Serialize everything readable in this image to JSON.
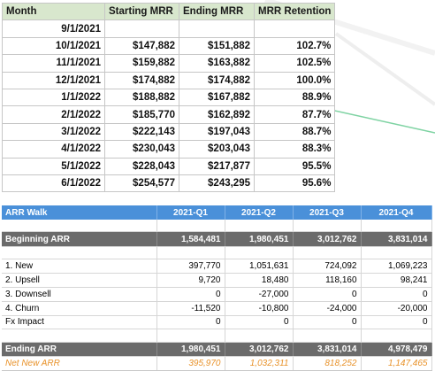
{
  "mrr_table": {
    "headers": [
      "Month",
      "Starting MRR",
      "Ending MRR",
      "MRR Retention"
    ],
    "rows": [
      [
        "9/1/2021",
        "",
        "",
        ""
      ],
      [
        "10/1/2021",
        "$147,882",
        "$151,882",
        "102.7%"
      ],
      [
        "11/1/2021",
        "$159,882",
        "$163,882",
        "102.5%"
      ],
      [
        "12/1/2021",
        "$174,882",
        "$174,882",
        "100.0%"
      ],
      [
        "1/1/2022",
        "$188,882",
        "$167,882",
        "88.9%"
      ],
      [
        "2/1/2022",
        "$185,770",
        "$162,892",
        "87.7%"
      ],
      [
        "3/1/2022",
        "$222,143",
        "$197,043",
        "88.7%"
      ],
      [
        "4/1/2022",
        "$230,043",
        "$203,043",
        "88.3%"
      ],
      [
        "5/1/2022",
        "$228,043",
        "$217,877",
        "95.5%"
      ],
      [
        "6/1/2022",
        "$254,577",
        "$243,295",
        "95.6%"
      ]
    ],
    "header_color": "#d8e7cd"
  },
  "arr_walk": {
    "title": "ARR Walk",
    "quarters": [
      "2021-Q1",
      "2021-Q2",
      "2021-Q3",
      "2021-Q4"
    ],
    "beginning": {
      "label": "Beginning ARR",
      "values": [
        "1,584,481",
        "1,980,451",
        "3,012,762",
        "3,831,014"
      ]
    },
    "items": [
      {
        "label": "1. New",
        "values": [
          "397,770",
          "1,051,631",
          "724,092",
          "1,069,223"
        ]
      },
      {
        "label": "2. Upsell",
        "values": [
          "9,720",
          "18,480",
          "118,160",
          "98,241"
        ]
      },
      {
        "label": "3. Downsell",
        "values": [
          "0",
          "-27,000",
          "0",
          "0"
        ]
      },
      {
        "label": "4. Churn",
        "values": [
          "-11,520",
          "-10,800",
          "-24,000",
          "-20,000"
        ]
      },
      {
        "label": "Fx Impact",
        "values": [
          "0",
          "0",
          "0",
          "0"
        ]
      }
    ],
    "ending": {
      "label": "Ending ARR",
      "values": [
        "1,980,451",
        "3,012,762",
        "3,831,014",
        "4,978,479"
      ]
    },
    "net_new": {
      "label": "Net New ARR",
      "values": [
        "395,970",
        "1,032,311",
        "818,252",
        "1,147,465"
      ]
    },
    "header_color": "#4a90d9",
    "subtotal_color": "#6b6b6b",
    "net_new_color": "#e8922a"
  }
}
